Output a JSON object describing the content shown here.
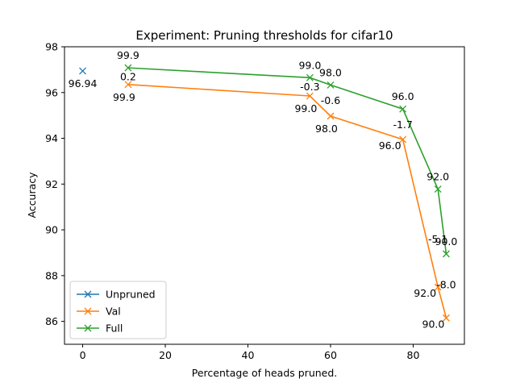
{
  "chart_data": {
    "type": "line",
    "title": "Experiment: Pruning thresholds for cifar10",
    "xlabel": "Percentage of heads pruned.",
    "ylabel": "Accuracy",
    "xlim": [
      -4.4,
      92.4
    ],
    "ylim": [
      85.0,
      98.0
    ],
    "x_ticks": [
      0,
      20,
      40,
      60,
      80
    ],
    "y_ticks": [
      86,
      88,
      90,
      92,
      94,
      96,
      98
    ],
    "grid": false,
    "legend_position": "lower-left",
    "series": [
      {
        "name": "Unpruned",
        "color": "#1f77b4",
        "marker": "x",
        "x": [
          0
        ],
        "y": [
          96.94
        ],
        "labels": [
          "96.94"
        ]
      },
      {
        "name": "Val",
        "color": "#ff7f0e",
        "marker": "x",
        "x": [
          11,
          55,
          60,
          77.5,
          86,
          88
        ],
        "y": [
          96.35,
          95.85,
          94.97,
          93.95,
          87.5,
          86.15
        ],
        "labels": [
          "99.9",
          "99.0",
          "98.0",
          "96.0",
          "92.0",
          "90.0"
        ]
      },
      {
        "name": "Full",
        "color": "#2ca02c",
        "marker": "x",
        "x": [
          11,
          55,
          60,
          77.5,
          86,
          88
        ],
        "y": [
          97.08,
          96.65,
          96.33,
          95.28,
          91.78,
          88.95
        ],
        "labels": [
          "99.9",
          "99.0",
          "98.0",
          "96.0",
          "92.0",
          "90.0"
        ]
      }
    ],
    "annotations": [
      {
        "x": 11,
        "y": 96.7,
        "text": "0.2"
      },
      {
        "x": 55,
        "y": 96.25,
        "text": "-0.3"
      },
      {
        "x": 60,
        "y": 95.65,
        "text": "-0.6"
      },
      {
        "x": 77.5,
        "y": 94.6,
        "text": "-1.7"
      },
      {
        "x": 86,
        "y": 89.6,
        "text": "-5.1"
      },
      {
        "x": 88,
        "y": 87.6,
        "text": "-8.0"
      }
    ]
  }
}
